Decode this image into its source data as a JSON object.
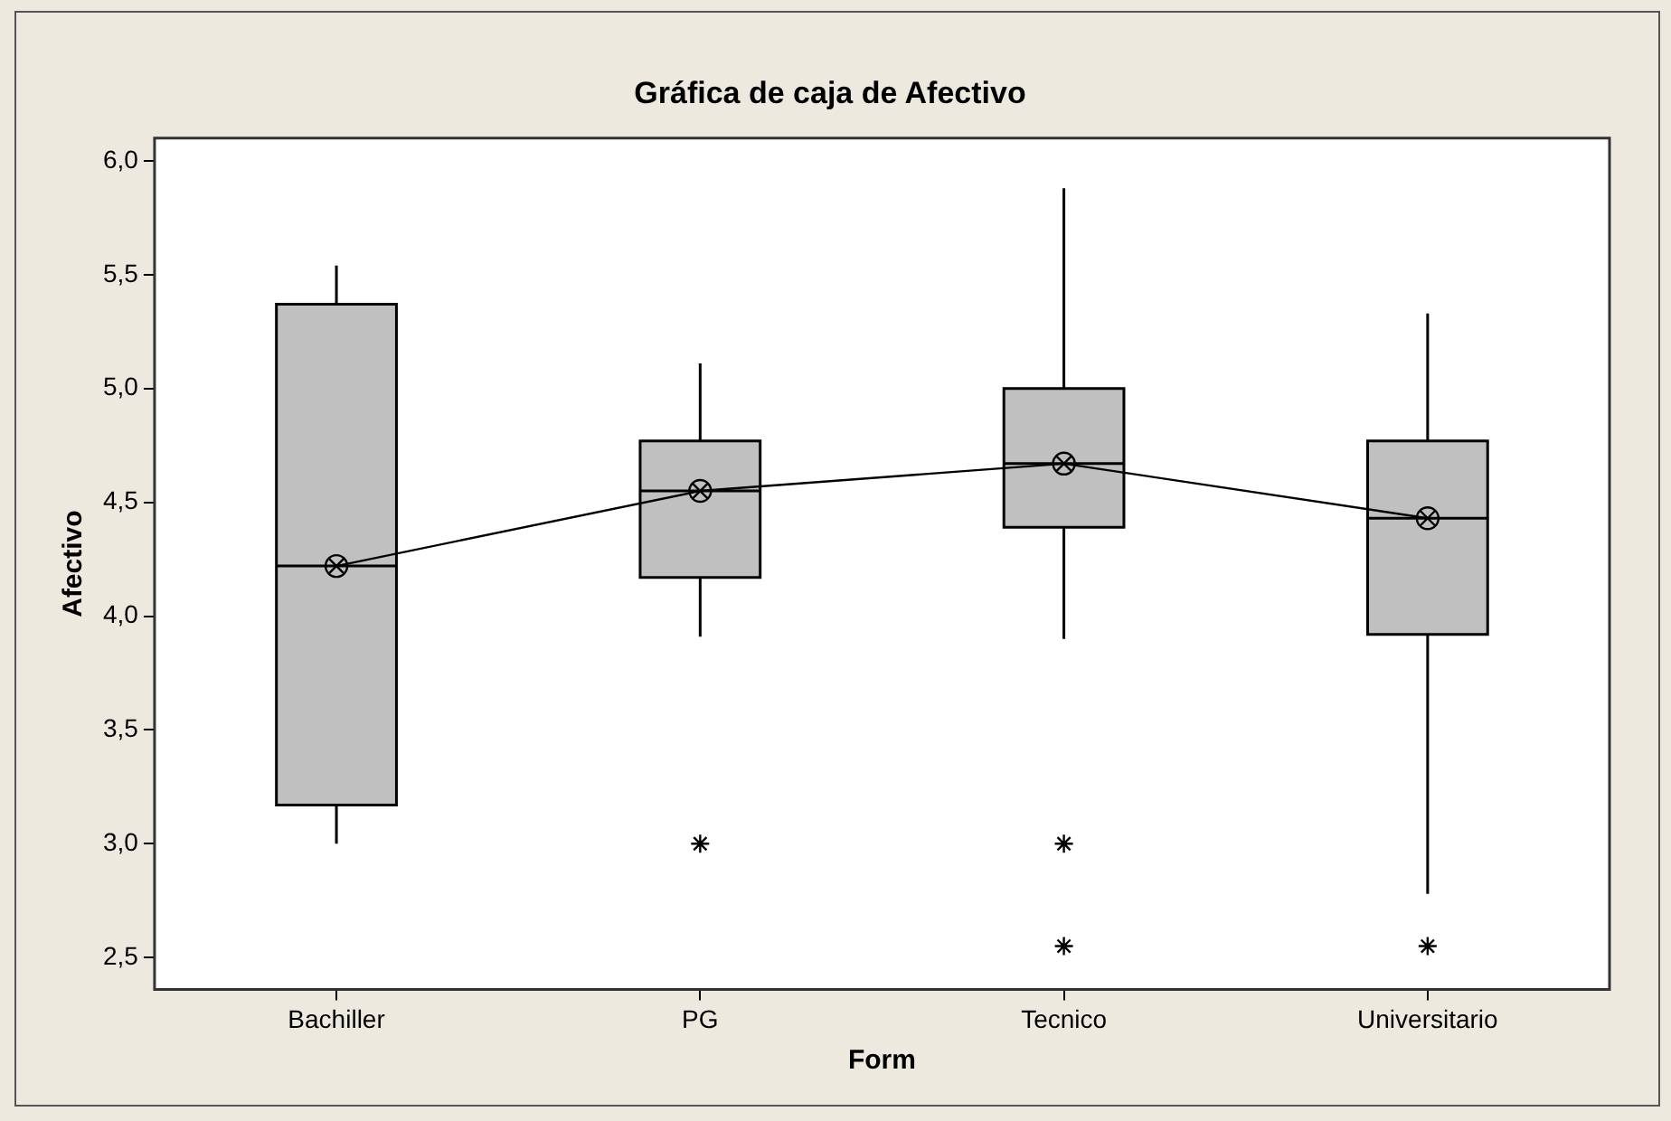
{
  "chart_data": {
    "type": "box",
    "title": "Gráfica de caja de Afectivo",
    "xlabel": "Form",
    "ylabel": "Afectivo",
    "categories": [
      "Bachiller",
      "PG",
      "Tecnico",
      "Universitario"
    ],
    "color": "#c0c0c0",
    "boxes": [
      {
        "low": 3.0,
        "q1": 3.17,
        "median": 4.22,
        "q3": 5.37,
        "high": 5.54,
        "mean": 4.22
      },
      {
        "low": 3.91,
        "q1": 4.17,
        "median": 4.55,
        "q3": 4.77,
        "high": 5.11,
        "mean": 4.55,
        "outliers": [
          3.0
        ]
      },
      {
        "low": 3.9,
        "q1": 4.39,
        "median": 4.67,
        "q3": 5.0,
        "high": 5.88,
        "mean": 4.67,
        "outliers": [
          3.0,
          2.55
        ]
      },
      {
        "low": 2.78,
        "q1": 3.92,
        "median": 4.43,
        "q3": 4.77,
        "high": 5.33,
        "mean": 4.43,
        "outliers": [
          2.55
        ]
      }
    ],
    "series": [
      {
        "type": "line",
        "color": "#000000",
        "values": [
          4.22,
          4.55,
          4.67,
          4.43
        ]
      }
    ],
    "ylim": [
      2.36,
      6.1
    ],
    "yticks": [
      {
        "value": 2.5,
        "label": "2,5"
      },
      {
        "value": 3,
        "label": "3,0"
      },
      {
        "value": 3.5,
        "label": "3,5"
      },
      {
        "value": 4,
        "label": "4,0"
      },
      {
        "value": 4.5,
        "label": "4,5"
      },
      {
        "value": 5,
        "label": "5,0"
      },
      {
        "value": 5.5,
        "label": "5,5"
      },
      {
        "value": 6,
        "label": "6,0"
      }
    ]
  }
}
